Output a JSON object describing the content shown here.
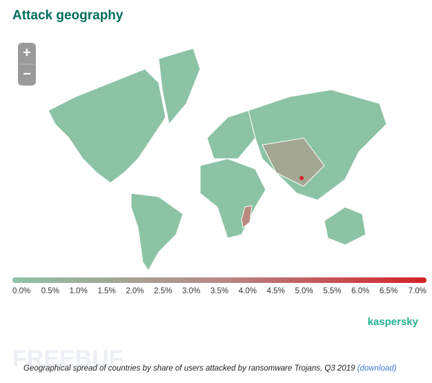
{
  "header": {
    "title": "Attack geography"
  },
  "zoom": {
    "in": "+",
    "out": "−"
  },
  "legend": {
    "labels": [
      "0.0%",
      "0.5%",
      "1.0%",
      "1.5%",
      "2.0%",
      "2.5%",
      "3.0%",
      "3.5%",
      "4.0%",
      "4.5%",
      "5.0%",
      "5.5%",
      "6.0%",
      "6.5%",
      "7.0%"
    ]
  },
  "logo": "kaspersky",
  "watermark": "FREEBUF",
  "caption": {
    "text": "Geographical spread of countries by share of users attacked by ransomware Trojans, Q3 2019",
    "link": "(download)"
  }
}
